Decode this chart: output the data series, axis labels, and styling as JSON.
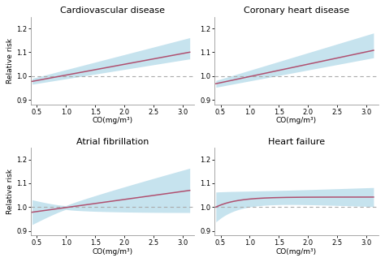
{
  "titles": [
    "Cardiovascular disease",
    "Coronary heart disease",
    "Atrial fibrillation",
    "Heart failure"
  ],
  "xlabel": "CO(mg/m³)",
  "ylabel": "Relative risk",
  "xlim": [
    0.4,
    3.2
  ],
  "ylim": [
    0.88,
    1.25
  ],
  "xticks": [
    0.5,
    1.0,
    1.5,
    2.0,
    2.5,
    3.0
  ],
  "yticks": [
    0.9,
    1.0,
    1.1,
    1.2
  ],
  "line_color": "#b05070",
  "ci_color": "#a8d4e6",
  "ci_alpha": 0.65,
  "dashed_color": "#aaaaaa",
  "background_color": "#ffffff",
  "title_fontsize": 8,
  "label_fontsize": 6.5,
  "tick_fontsize": 6
}
